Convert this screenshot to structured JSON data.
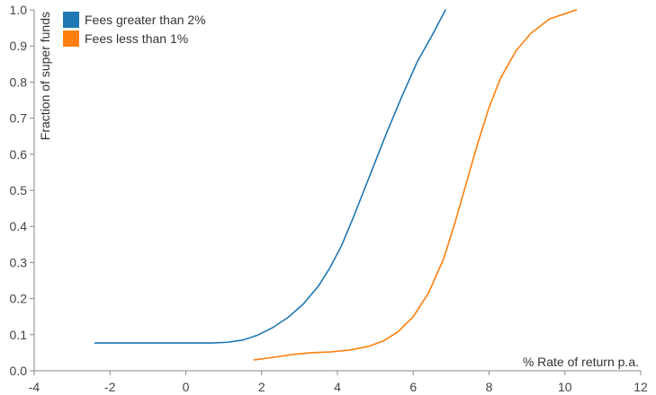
{
  "chart_data": {
    "type": "line",
    "xlabel": "% Rate of return p.a.",
    "ylabel": "Fraction of super funds",
    "xlim": [
      -4,
      12
    ],
    "ylim": [
      0,
      1.0
    ],
    "x_ticks": [
      "-4",
      "-2",
      "0",
      "2",
      "4",
      "6",
      "8",
      "10",
      "12"
    ],
    "y_ticks": [
      "0.0",
      "0.1",
      "0.2",
      "0.3",
      "0.4",
      "0.5",
      "0.6",
      "0.7",
      "0.8",
      "0.9",
      "1.0"
    ],
    "grid": false,
    "legend_position": "top-left",
    "series": [
      {
        "name": "Fees greater than 2%",
        "color": "#1f77b4",
        "points": [
          [
            -2.4,
            0.077
          ],
          [
            -1.0,
            0.077
          ],
          [
            0.0,
            0.077
          ],
          [
            0.7,
            0.077
          ],
          [
            1.1,
            0.079
          ],
          [
            1.5,
            0.085
          ],
          [
            1.9,
            0.099
          ],
          [
            2.3,
            0.12
          ],
          [
            2.7,
            0.148
          ],
          [
            3.1,
            0.185
          ],
          [
            3.5,
            0.235
          ],
          [
            3.8,
            0.285
          ],
          [
            4.1,
            0.345
          ],
          [
            4.4,
            0.42
          ],
          [
            4.7,
            0.5
          ],
          [
            5.0,
            0.58
          ],
          [
            5.3,
            0.66
          ],
          [
            5.7,
            0.76
          ],
          [
            6.1,
            0.855
          ],
          [
            6.5,
            0.93
          ],
          [
            6.85,
            1.0
          ]
        ]
      },
      {
        "name": "Fees less than 1%",
        "color": "#ff7f0e",
        "points": [
          [
            1.8,
            0.03
          ],
          [
            2.3,
            0.037
          ],
          [
            2.8,
            0.045
          ],
          [
            3.3,
            0.05
          ],
          [
            3.8,
            0.052
          ],
          [
            4.3,
            0.057
          ],
          [
            4.8,
            0.067
          ],
          [
            5.2,
            0.082
          ],
          [
            5.6,
            0.108
          ],
          [
            6.0,
            0.15
          ],
          [
            6.4,
            0.215
          ],
          [
            6.8,
            0.31
          ],
          [
            7.1,
            0.41
          ],
          [
            7.4,
            0.52
          ],
          [
            7.7,
            0.63
          ],
          [
            8.0,
            0.73
          ],
          [
            8.3,
            0.81
          ],
          [
            8.7,
            0.885
          ],
          [
            9.1,
            0.935
          ],
          [
            9.6,
            0.975
          ],
          [
            10.3,
            1.0
          ]
        ]
      }
    ]
  }
}
